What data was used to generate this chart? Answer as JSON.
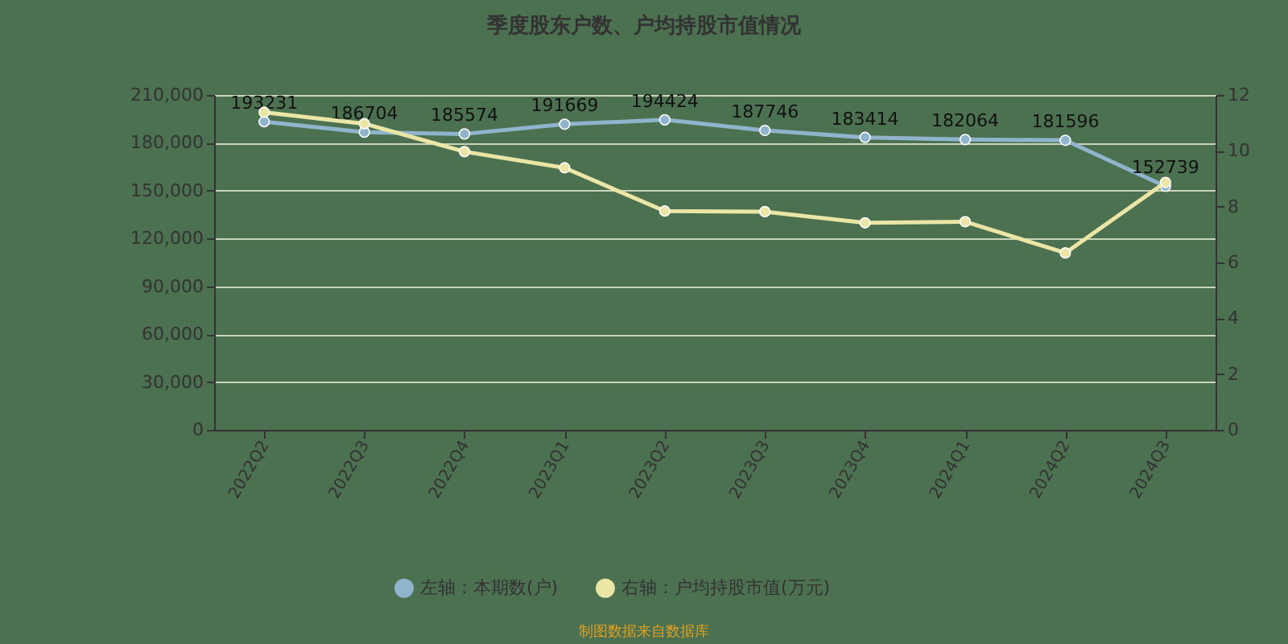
{
  "chart_data": {
    "type": "line",
    "title": "季度股东户数、户均持股市值情况",
    "categories": [
      "2022Q2",
      "2022Q3",
      "2022Q4",
      "2023Q1",
      "2023Q2",
      "2023Q3",
      "2023Q4",
      "2024Q1",
      "2024Q2",
      "2024Q3"
    ],
    "series": [
      {
        "name": "左轴：本期数(户)",
        "color": "#8fb4cc",
        "values": [
          193231,
          186704,
          185574,
          191669,
          194424,
          187746,
          183414,
          182064,
          181596,
          152739
        ],
        "value_labels": [
          "193231",
          "186704",
          "185574",
          "191669",
          "194424",
          "187746",
          "183414",
          "182064",
          "181596",
          "152739"
        ]
      },
      {
        "name": "右轴：户均持股市值(万元)",
        "color": "#ece6a6",
        "axis": "y2",
        "values": [
          11.38,
          10.97,
          9.97,
          9.39,
          7.84,
          7.82,
          7.42,
          7.46,
          6.34,
          8.87
        ]
      }
    ],
    "ylim": [
      0,
      210000
    ],
    "yticks": [
      0,
      {
        "value": 30000,
        "label": "30,000"
      },
      {
        "value": 60000,
        "label": "60,000"
      },
      {
        "value": 90000,
        "label": "90,000"
      },
      {
        "value": 120000,
        "label": "120,000"
      },
      {
        "value": 150000,
        "label": "150,000"
      },
      {
        "value": 180000,
        "label": "180,000"
      },
      {
        "value": 210000,
        "label": "210,000"
      }
    ],
    "y2lim": [
      0,
      12
    ],
    "y2ticks": [
      0,
      2,
      4,
      6,
      8,
      10,
      12
    ],
    "grid": "y",
    "legend": "bottom",
    "marker": "circle",
    "line_style": "solid",
    "annotations": [
      "制图数据来自数据库"
    ]
  }
}
